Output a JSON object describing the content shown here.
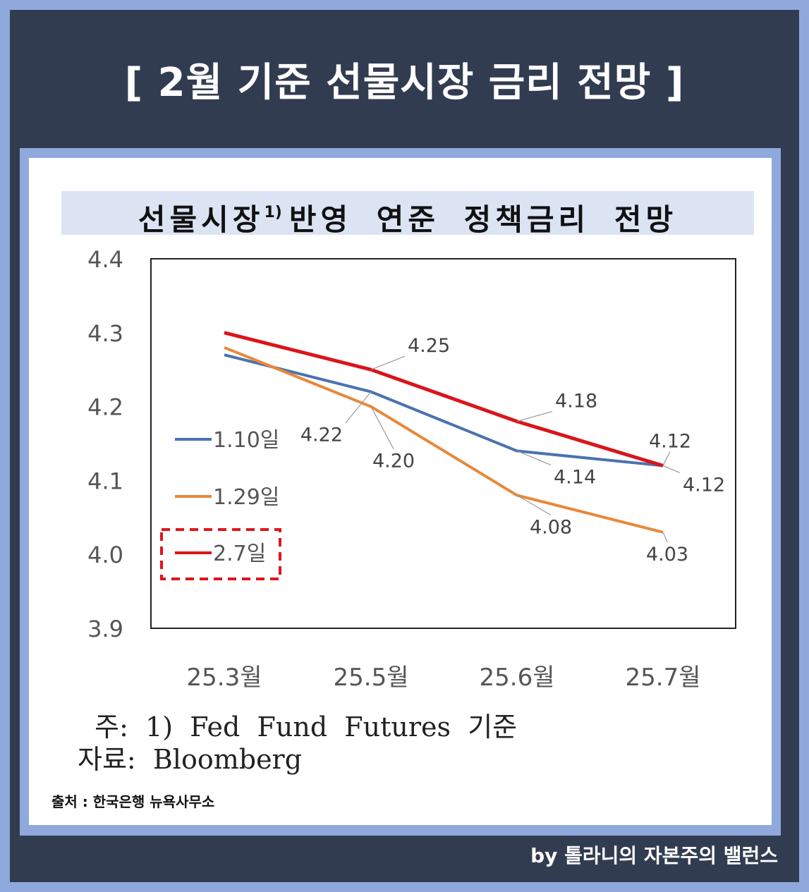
{
  "title": "[ 2월 기준 선물시장 금리 전망 ]",
  "chart_title": {
    "text": "선물시장",
    "superscript": "1)",
    "rest": "반영 연준 정책금리 전망"
  },
  "notes": {
    "note_line": "  주:  1)  Fed  Fund  Futures  기준",
    "source_line": "자료:  Bloomberg"
  },
  "source": "출처 : 한국은행 뉴욕사무소",
  "credit": "by 톨라니의 자본주의 밸런스",
  "colors": {
    "frame": "#323c51",
    "border": "#8fa9dc",
    "title_bar": "#dce4f3",
    "series_blue": "#4a72b0",
    "series_orange": "#e8883a",
    "series_red": "#d9151b"
  },
  "chart_data": {
    "type": "line",
    "categories": [
      "25.3월",
      "25.5월",
      "25.6월",
      "25.7월"
    ],
    "ylim": [
      3.9,
      4.4
    ],
    "yticks": [
      "4.4",
      "4.3",
      "4.2",
      "4.1",
      "4.0",
      "3.9"
    ],
    "legend": "left-inside",
    "series": [
      {
        "name": "1.10일",
        "color": "#4a72b0",
        "values": [
          4.27,
          4.22,
          4.14,
          4.12
        ],
        "labels": [
          null,
          "4.22",
          "4.14",
          "4.12"
        ]
      },
      {
        "name": "1.29일",
        "color": "#e8883a",
        "values": [
          4.28,
          4.2,
          4.08,
          4.03
        ],
        "labels": [
          null,
          "4.20",
          "4.08",
          "4.03"
        ]
      },
      {
        "name": "2.7일",
        "color": "#d9151b",
        "values": [
          4.3,
          4.25,
          4.18,
          4.12
        ],
        "labels": [
          null,
          "4.25",
          "4.18",
          "4.12"
        ],
        "highlight": true
      }
    ]
  }
}
